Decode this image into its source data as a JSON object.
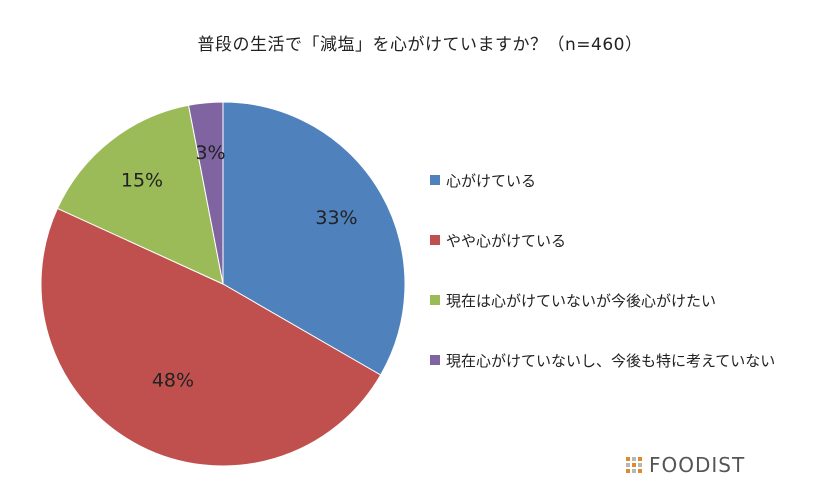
{
  "chart_data": {
    "type": "pie",
    "title": "普段の生活で「減塩」を心がけていますか？（n=460）",
    "slices": [
      {
        "label": "心がけている",
        "value": 33,
        "display": "33%",
        "color": "#4F81BD"
      },
      {
        "label": "やや心がけている",
        "value": 48,
        "display": "48%",
        "color": "#C0504D"
      },
      {
        "label": "現在は心がけていないが今後心がけたい",
        "value": 15,
        "display": "15%",
        "color": "#9BBB59"
      },
      {
        "label": "現在心がけていないし、今後も特に考えていない",
        "value": 3,
        "display": "3%",
        "color": "#8064A2"
      }
    ],
    "legend_position": "right"
  },
  "brand": {
    "name": "FOODIST"
  }
}
